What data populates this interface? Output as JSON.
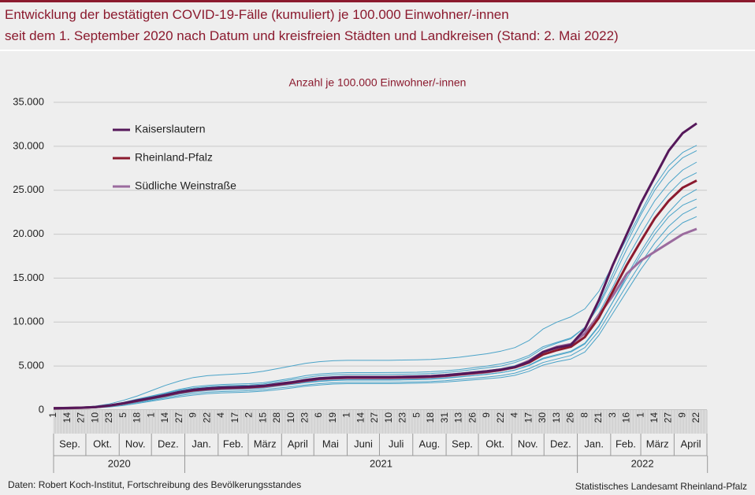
{
  "chart_data": {
    "type": "line",
    "title": [
      "Entwicklung der bestätigten COVID-19-Fälle (kumuliert) je 100.000 Einwohner/-innen",
      "seit dem 1. September 2020 nach Datum und kreisfreien Städten und Landkreisen (Stand: 2. Mai 2022)"
    ],
    "y_label": "Anzahl je 100.000 Einwohner/-innen",
    "source": "Daten: Robert Koch-Institut, Fortschreibung des Bevölkerungsstandes",
    "publisher": "Statistisches Landesamt Rheinland-Pfalz",
    "categories": [
      "1",
      "14",
      "27",
      "10",
      "23",
      "5",
      "18",
      "1",
      "14",
      "27",
      "9",
      "22",
      "4",
      "17",
      "2",
      "15",
      "28",
      "10",
      "23",
      "6",
      "19",
      "1",
      "14",
      "27",
      "10",
      "23",
      "5",
      "18",
      "31",
      "13",
      "26",
      "9",
      "22",
      "4",
      "17",
      "30",
      "13",
      "26",
      "8",
      "21",
      "3",
      "16",
      "1",
      "14",
      "27",
      "9",
      "22"
    ],
    "months": [
      "Sep.",
      "Okt.",
      "Nov.",
      "Dez.",
      "Jan.",
      "Feb.",
      "März",
      "April",
      "Mai",
      "Juni",
      "Juli",
      "Aug.",
      "Sep.",
      "Okt.",
      "Nov.",
      "Dez.",
      "Jan.",
      "Feb.",
      "März",
      "April"
    ],
    "years": [
      "2020",
      "2021",
      "2022"
    ],
    "ylim": [
      0,
      35000
    ],
    "yticks": [
      0,
      {
        "value": 5000,
        "label": "5.000"
      },
      {
        "value": 10000,
        "label": "10.000"
      },
      {
        "value": 15000,
        "label": "15.000"
      },
      {
        "value": 20000,
        "label": "20.000"
      },
      {
        "value": 25000,
        "label": "25.000"
      },
      {
        "value": 30000,
        "label": "30.000"
      },
      {
        "value": 35000,
        "label": "35.000"
      }
    ],
    "grid": true,
    "legend": "upper left",
    "series": [
      {
        "color": "#4aa3c8",
        "values": [
          250,
          280,
          330,
          450,
          700,
          1100,
          1600,
          2200,
          2800,
          3300,
          3700,
          3900,
          4000,
          4100,
          4200,
          4400,
          4700,
          5000,
          5300,
          5500,
          5600,
          5650,
          5650,
          5650,
          5650,
          5680,
          5700,
          5750,
          5850,
          6000,
          6200,
          6400,
          6700,
          7100,
          7900,
          9200,
          10000,
          10600,
          11500,
          13500,
          16500,
          19500,
          22500,
          25500,
          27800,
          29300,
          30100
        ]
      },
      {
        "color": "#4aa3c8",
        "values": [
          150,
          160,
          190,
          240,
          350,
          520,
          750,
          1000,
          1250,
          1500,
          1700,
          1850,
          1950,
          2000,
          2050,
          2150,
          2300,
          2500,
          2700,
          2850,
          2950,
          3000,
          3000,
          3000,
          3000,
          3020,
          3050,
          3100,
          3180,
          3300,
          3420,
          3550,
          3700,
          3950,
          4400,
          5100,
          5500,
          5800,
          6600,
          8500,
          11000,
          13500,
          16000,
          18200,
          20000,
          21300,
          22000
        ]
      },
      {
        "color": "#4aa3c8",
        "values": [
          220,
          240,
          290,
          380,
          580,
          880,
          1250,
          1600,
          1950,
          2350,
          2650,
          2800,
          2900,
          2950,
          3000,
          3100,
          3350,
          3600,
          3900,
          4100,
          4200,
          4250,
          4250,
          4250,
          4260,
          4280,
          4300,
          4350,
          4450,
          4600,
          4800,
          5000,
          5250,
          5600,
          6200,
          7200,
          7700,
          8200,
          9400,
          11800,
          15000,
          18300,
          21200,
          23800,
          25800,
          27300,
          28200
        ]
      },
      {
        "color": "#4aa3c8",
        "values": [
          180,
          200,
          230,
          300,
          450,
          680,
          950,
          1250,
          1550,
          1850,
          2100,
          2250,
          2350,
          2400,
          2450,
          2550,
          2750,
          2950,
          3150,
          3300,
          3400,
          3450,
          3450,
          3450,
          3450,
          3470,
          3500,
          3550,
          3640,
          3780,
          3920,
          4070,
          4250,
          4550,
          5100,
          5900,
          6300,
          6700,
          7600,
          9600,
          12300,
          15000,
          17600,
          20000,
          22000,
          23300,
          24000
        ]
      },
      {
        "color": "#4aa3c8",
        "values": [
          200,
          230,
          270,
          350,
          540,
          800,
          1100,
          1450,
          1800,
          2150,
          2400,
          2550,
          2650,
          2700,
          2750,
          2850,
          3050,
          3250,
          3500,
          3700,
          3800,
          3850,
          3850,
          3850,
          3850,
          3870,
          3900,
          3950,
          4050,
          4200,
          4350,
          4500,
          4700,
          5050,
          5650,
          6600,
          7100,
          7500,
          8700,
          11000,
          14000,
          17200,
          20000,
          22600,
          24600,
          26200,
          27000
        ]
      },
      {
        "color": "#4aa3c8",
        "values": [
          170,
          190,
          220,
          290,
          430,
          650,
          920,
          1200,
          1500,
          1800,
          2050,
          2200,
          2300,
          2350,
          2400,
          2500,
          2700,
          2900,
          3100,
          3250,
          3350,
          3400,
          3400,
          3400,
          3400,
          3420,
          3450,
          3500,
          3600,
          3750,
          3900,
          4050,
          4250,
          4550,
          5050,
          5800,
          6200,
          6600,
          7500,
          9500,
          12300,
          15300,
          18000,
          20500,
          22500,
          24200,
          25100
        ]
      },
      {
        "color": "#4aa3c8",
        "values": [
          210,
          230,
          280,
          360,
          560,
          850,
          1200,
          1550,
          1900,
          2250,
          2500,
          2650,
          2750,
          2800,
          2850,
          2950,
          3200,
          3450,
          3700,
          3900,
          4000,
          4050,
          4050,
          4050,
          4050,
          4070,
          4100,
          4150,
          4250,
          4400,
          4600,
          4800,
          5000,
          5400,
          6000,
          7000,
          7600,
          8100,
          9400,
          12000,
          15500,
          19000,
          22200,
          25000,
          27200,
          28700,
          29500
        ]
      },
      {
        "color": "#4aa3c8",
        "values": [
          160,
          180,
          210,
          270,
          400,
          600,
          850,
          1100,
          1380,
          1650,
          1880,
          2020,
          2100,
          2150,
          2200,
          2300,
          2480,
          2650,
          2850,
          3000,
          3100,
          3150,
          3150,
          3150,
          3150,
          3170,
          3200,
          3250,
          3330,
          3460,
          3600,
          3750,
          3920,
          4200,
          4700,
          5400,
          5800,
          6200,
          7100,
          9000,
          11600,
          14200,
          16700,
          19000,
          20900,
          22300,
          23100
        ]
      },
      {
        "name": "Südliche Weinstraße",
        "color": "#9b6b9e",
        "values": [
          190,
          210,
          250,
          320,
          490,
          730,
          1030,
          1330,
          1630,
          1950,
          2200,
          2350,
          2450,
          2500,
          2550,
          2650,
          2850,
          3050,
          3300,
          3500,
          3600,
          3650,
          3650,
          3650,
          3650,
          3670,
          3700,
          3750,
          3850,
          4000,
          4150,
          4300,
          4550,
          4900,
          5600,
          6600,
          7200,
          7500,
          8700,
          10800,
          13000,
          15500,
          17000,
          18000,
          19000,
          20000,
          20600
        ]
      },
      {
        "name": "Rheinland-Pfalz",
        "color": "#8b1a2e",
        "values": [
          200,
          220,
          260,
          330,
          500,
          750,
          1050,
          1350,
          1650,
          2000,
          2250,
          2400,
          2500,
          2550,
          2600,
          2700,
          2900,
          3100,
          3350,
          3550,
          3650,
          3700,
          3700,
          3700,
          3700,
          3720,
          3750,
          3800,
          3900,
          4050,
          4200,
          4350,
          4550,
          4850,
          5400,
          6300,
          6800,
          7200,
          8300,
          10500,
          13500,
          16500,
          19200,
          21800,
          23800,
          25300,
          26100
        ]
      },
      {
        "name": "Kaiserslautern",
        "color": "#55185a",
        "values": [
          210,
          230,
          270,
          340,
          520,
          780,
          1080,
          1380,
          1700,
          2050,
          2300,
          2450,
          2550,
          2600,
          2650,
          2750,
          2950,
          3150,
          3400,
          3600,
          3700,
          3750,
          3750,
          3750,
          3750,
          3770,
          3800,
          3850,
          3950,
          4100,
          4250,
          4400,
          4600,
          4900,
          5500,
          6600,
          7100,
          7400,
          9200,
          12500,
          16500,
          20000,
          23500,
          26500,
          29500,
          31500,
          32600
        ]
      }
    ]
  }
}
